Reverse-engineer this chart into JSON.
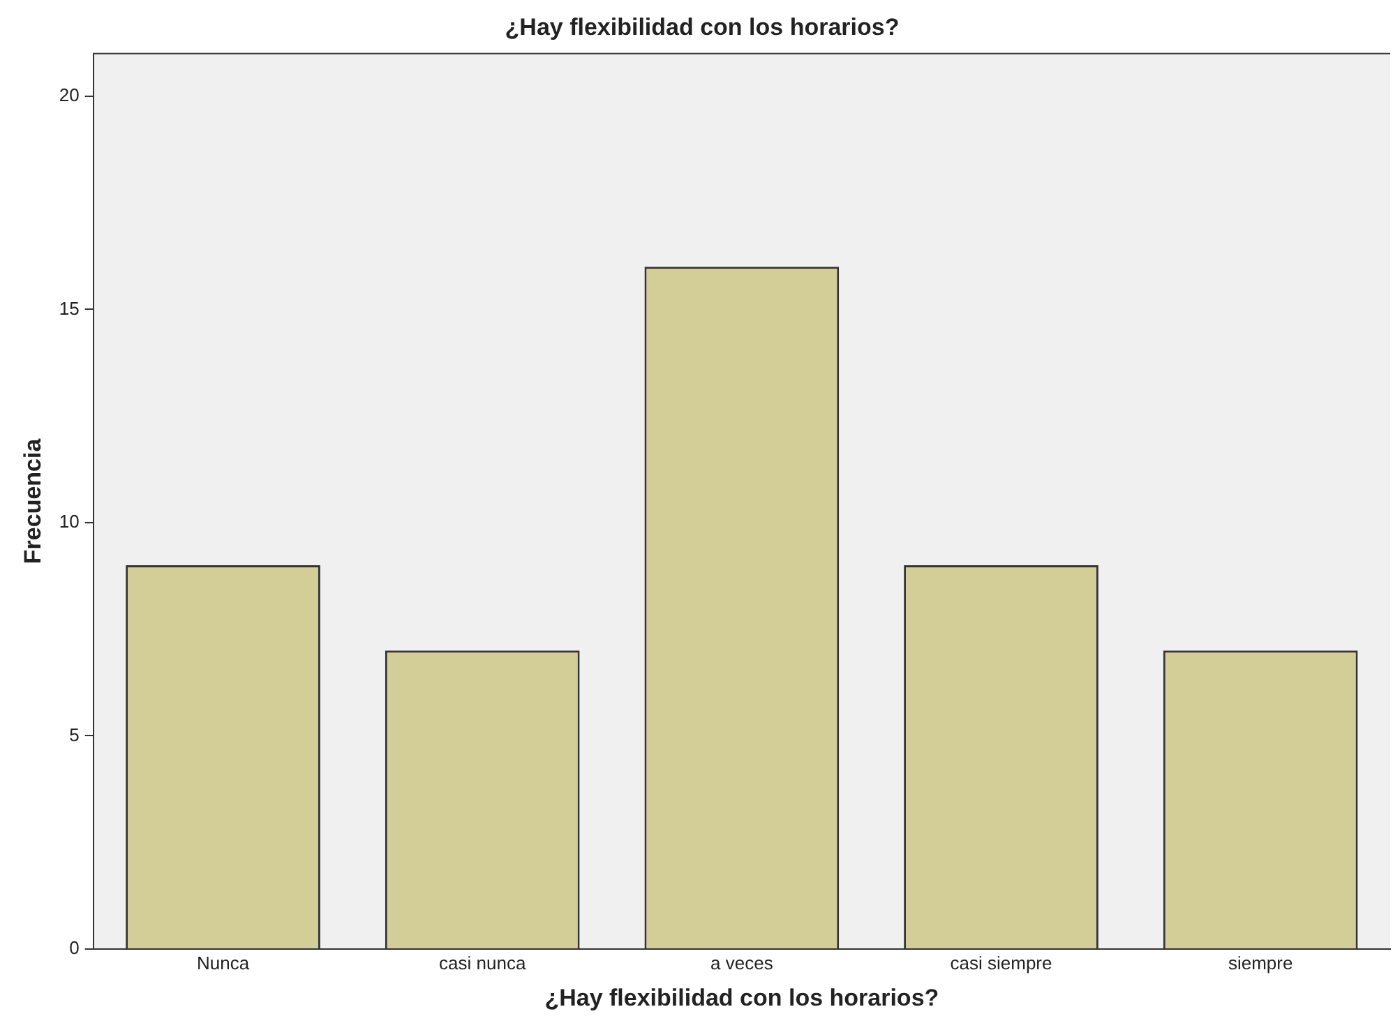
{
  "chart_data": {
    "type": "bar",
    "title": "¿Hay flexibilidad con los horarios?",
    "xlabel": "¿Hay flexibilidad con los horarios?",
    "ylabel": "Frecuencia",
    "categories": [
      "Nunca",
      "casi nunca",
      "a veces",
      "casi siempre",
      "siempre"
    ],
    "values": [
      9,
      7,
      16,
      9,
      7
    ],
    "color": "#d3cd98",
    "ylim": [
      0,
      21
    ],
    "yticks": [
      0,
      5,
      10,
      15,
      20
    ],
    "grid": false,
    "legend": false
  }
}
